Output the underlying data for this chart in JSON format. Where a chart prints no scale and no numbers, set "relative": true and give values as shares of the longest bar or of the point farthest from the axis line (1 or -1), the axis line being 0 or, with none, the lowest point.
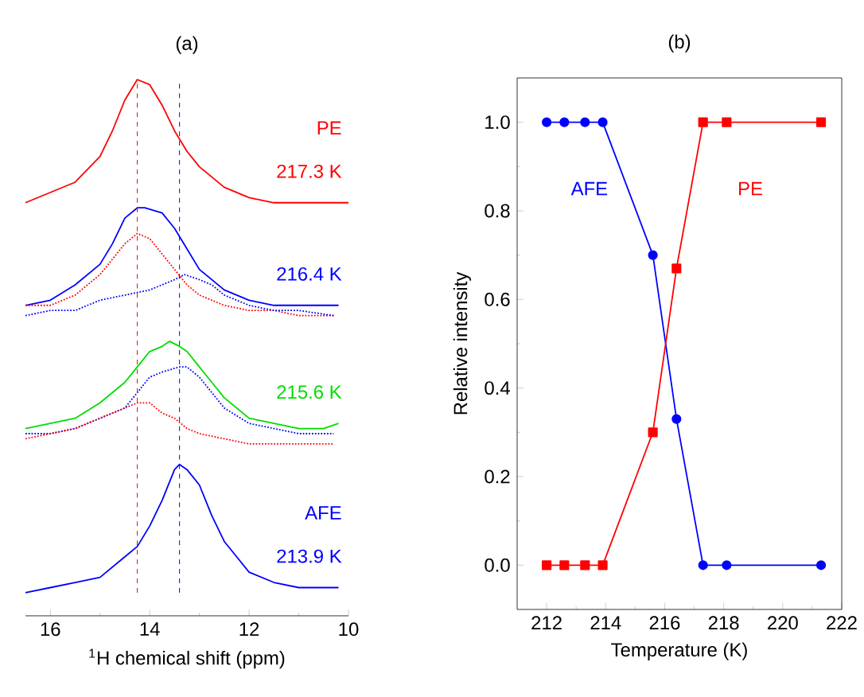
{
  "chart_data": [
    {
      "type": "line",
      "title": "(a)",
      "xlabel": "$^{1}$H chemical shift (ppm)",
      "relative": true,
      "xlim": [
        16.5,
        10
      ],
      "xticks": [
        16,
        14,
        12,
        10
      ],
      "tick_labels": "x",
      "series": [
        {
          "name": "217.3 K",
          "color": "#ff0000",
          "line_style": "solid",
          "x": [
            16.5,
            16,
            15.5,
            15,
            14.75,
            14.5,
            14.25,
            14,
            13.75,
            13.5,
            13.25,
            13,
            12.5,
            12,
            11.5,
            11,
            10.5,
            10
          ],
          "values": [
            0.76,
            0.78,
            0.8,
            0.85,
            0.9,
            0.96,
            1,
            0.99,
            0.95,
            0.9,
            0.86,
            0.83,
            0.79,
            0.77,
            0.76,
            0.76,
            0.76,
            0.76
          ]
        },
        {
          "name": "216.4 K",
          "color": "#0000ff",
          "line_style": "solid",
          "x": [
            16.5,
            16,
            15.5,
            15,
            14.75,
            14.5,
            14.25,
            14.1,
            13.75,
            13.5,
            13.25,
            13,
            12.5,
            12,
            11.5,
            11,
            10.5,
            10.2
          ],
          "values": [
            0.56,
            0.57,
            0.6,
            0.64,
            0.68,
            0.73,
            0.75,
            0.75,
            0.74,
            0.71,
            0.67,
            0.63,
            0.59,
            0.57,
            0.56,
            0.56,
            0.56,
            0.56
          ]
        },
        {
          "color": "#ff0000",
          "line_style": "dotted",
          "x": [
            16.5,
            16,
            15.5,
            15,
            14.75,
            14.5,
            14.25,
            14,
            13.75,
            13.5,
            13.25,
            13,
            12.5,
            12,
            11.5,
            11,
            10.3
          ],
          "values": [
            0.56,
            0.56,
            0.58,
            0.62,
            0.65,
            0.68,
            0.7,
            0.69,
            0.66,
            0.63,
            0.6,
            0.58,
            0.56,
            0.55,
            0.55,
            0.54,
            0.54
          ]
        },
        {
          "color": "#0000ff",
          "line_style": "dotted",
          "x": [
            16.5,
            16,
            15.5,
            15,
            14.5,
            14,
            13.75,
            13.5,
            13.3,
            13,
            12.75,
            12.5,
            12,
            11.5,
            11,
            10.3
          ],
          "values": [
            0.54,
            0.55,
            0.55,
            0.57,
            0.58,
            0.59,
            0.6,
            0.61,
            0.62,
            0.61,
            0.6,
            0.58,
            0.56,
            0.55,
            0.55,
            0.54
          ]
        },
        {
          "name": "215.6 K",
          "color": "#00dd00",
          "line_style": "solid",
          "x": [
            16.5,
            16,
            15.5,
            15,
            14.5,
            14.25,
            14,
            13.75,
            13.6,
            13.4,
            13.25,
            13,
            12.75,
            12.5,
            12,
            11.5,
            11,
            10.5,
            10.2
          ],
          "values": [
            0.32,
            0.33,
            0.34,
            0.37,
            0.41,
            0.44,
            0.47,
            0.48,
            0.49,
            0.48,
            0.47,
            0.44,
            0.41,
            0.38,
            0.34,
            0.33,
            0.32,
            0.32,
            0.33
          ]
        },
        {
          "color": "#0000ff",
          "line_style": "dotted",
          "x": [
            16.5,
            16,
            15.5,
            15,
            14.5,
            14.25,
            14,
            13.75,
            13.4,
            13.25,
            13,
            12.75,
            12.5,
            12,
            11.5,
            11,
            10.3
          ],
          "values": [
            0.31,
            0.31,
            0.32,
            0.34,
            0.36,
            0.39,
            0.42,
            0.43,
            0.44,
            0.44,
            0.42,
            0.39,
            0.36,
            0.33,
            0.32,
            0.31,
            0.31
          ]
        },
        {
          "color": "#ff0000",
          "line_style": "dotted",
          "x": [
            16.5,
            16,
            15.5,
            15,
            14.5,
            14.25,
            14,
            13.75,
            13.5,
            13.25,
            13,
            12.5,
            12,
            11,
            10.3
          ],
          "values": [
            0.3,
            0.31,
            0.32,
            0.34,
            0.36,
            0.37,
            0.37,
            0.35,
            0.34,
            0.32,
            0.31,
            0.3,
            0.29,
            0.29,
            0.29
          ]
        },
        {
          "name": "213.9 K",
          "color": "#0000ff",
          "line_style": "solid",
          "x": [
            16.5,
            16,
            15.5,
            15,
            14.5,
            14.25,
            14,
            13.75,
            13.5,
            13.4,
            13.25,
            13,
            12.75,
            12.5,
            12.25,
            12,
            11.5,
            11,
            10.5,
            10.2
          ],
          "values": [
            0,
            0.01,
            0.02,
            0.03,
            0.07,
            0.09,
            0.13,
            0.18,
            0.24,
            0.25,
            0.24,
            0.21,
            0.15,
            0.1,
            0.07,
            0.04,
            0.02,
            0.01,
            0.01,
            0.01
          ]
        }
      ],
      "ref_lines": [
        {
          "axis": "x",
          "value": 14.25,
          "label": "PE",
          "color": "#ff0000",
          "line_style": "dashed"
        },
        {
          "axis": "x",
          "value": 13.4,
          "label": "AFE",
          "color": "#0000ff",
          "line_style": "dashed"
        }
      ]
    },
    {
      "type": "line",
      "title": "(b)",
      "xlabel": "Temperature (K)",
      "ylabel": "Relative intensity",
      "xlim": [
        211,
        222
      ],
      "xticks": [
        212,
        214,
        216,
        218,
        220,
        222
      ],
      "ylim": [
        -0.1,
        1.1
      ],
      "yticks": [
        {
          "value": 0,
          "label": "0.0"
        },
        0.2,
        0.4,
        0.6,
        0.8,
        {
          "value": 1,
          "label": "1.0"
        }
      ],
      "legend": false,
      "x": [
        212,
        212.6,
        213.3,
        213.9,
        215.6,
        216.4,
        217.3,
        218.1,
        221.3
      ],
      "series": [
        {
          "name": "AFE",
          "color": "#0000ff",
          "marker": "circle",
          "values": [
            1,
            1,
            1,
            1,
            0.7,
            0.33,
            0,
            0,
            0
          ]
        },
        {
          "name": "PE",
          "color": "#ff0000",
          "marker": "square",
          "values": [
            0,
            0,
            0,
            0,
            0.3,
            0.67,
            1,
            1,
            1
          ]
        }
      ]
    }
  ]
}
